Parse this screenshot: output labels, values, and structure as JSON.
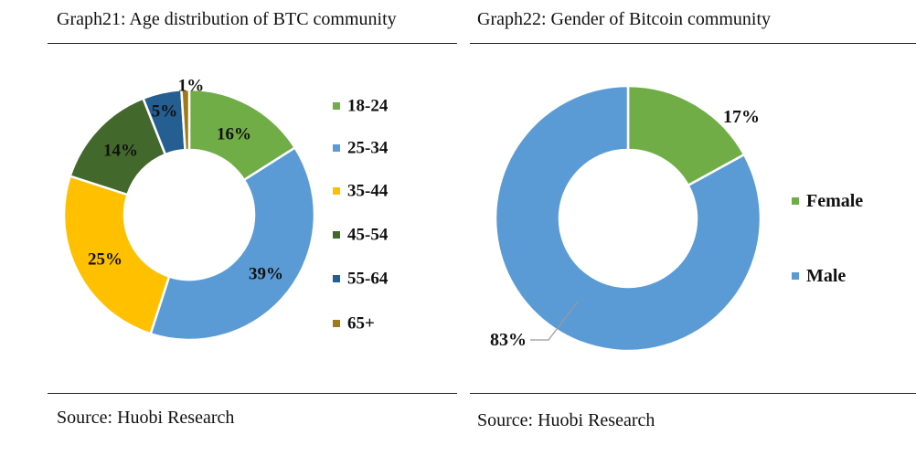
{
  "chart_data": [
    {
      "type": "pie",
      "title": "Graph21: Age distribution of BTC community",
      "source": "Source: Huobi Research",
      "categories": [
        "18-24",
        "25-34",
        "35-44",
        "45-54",
        "55-64",
        "65+"
      ],
      "values": [
        16,
        39,
        25,
        14,
        5,
        1
      ],
      "labels": [
        "16%",
        "39%",
        "25%",
        "14%",
        "5%",
        "1%"
      ],
      "colors": [
        "#70ad47",
        "#5b9bd5",
        "#ffc000",
        "#43682b",
        "#255e91",
        "#9e7b17"
      ],
      "legend": "right"
    },
    {
      "type": "pie",
      "title": "Graph22: Gender of Bitcoin community",
      "source": "Source: Huobi Research",
      "categories": [
        "Female",
        "Male"
      ],
      "values": [
        17,
        83
      ],
      "labels": [
        "17%",
        "83%"
      ],
      "colors": [
        "#70ad47",
        "#5b9bd5"
      ],
      "legend": "right"
    }
  ]
}
